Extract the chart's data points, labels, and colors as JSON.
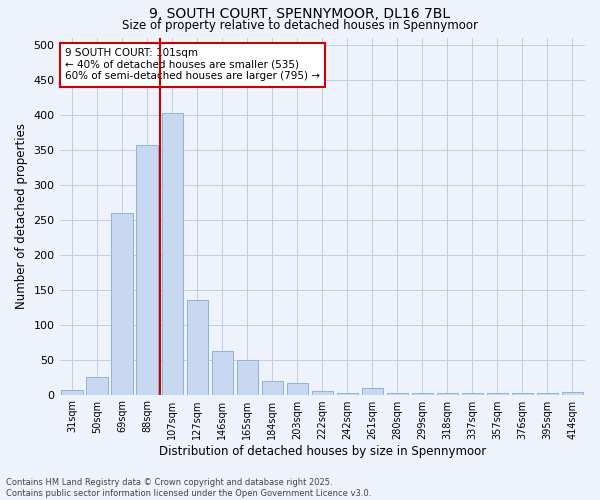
{
  "title_line1": "9, SOUTH COURT, SPENNYMOOR, DL16 7BL",
  "title_line2": "Size of property relative to detached houses in Spennymoor",
  "xlabel": "Distribution of detached houses by size in Spennymoor",
  "ylabel": "Number of detached properties",
  "categories": [
    "31sqm",
    "50sqm",
    "69sqm",
    "88sqm",
    "107sqm",
    "127sqm",
    "146sqm",
    "165sqm",
    "184sqm",
    "203sqm",
    "222sqm",
    "242sqm",
    "261sqm",
    "280sqm",
    "299sqm",
    "318sqm",
    "337sqm",
    "357sqm",
    "376sqm",
    "395sqm",
    "414sqm"
  ],
  "values": [
    7,
    25,
    260,
    357,
    402,
    135,
    62,
    49,
    19,
    16,
    5,
    2,
    9,
    2,
    2,
    2,
    2,
    2,
    2,
    2,
    3
  ],
  "bar_color": "#c8d8f0",
  "bar_edge_color": "#8ab4d8",
  "grid_color": "#c0cce0",
  "background_color": "#eef2fb",
  "vline_color": "#cc0000",
  "annotation_text": "9 SOUTH COURT: 101sqm\n← 40% of detached houses are smaller (535)\n60% of semi-detached houses are larger (795) →",
  "annotation_box_facecolor": "#ffffff",
  "annotation_box_edgecolor": "#cc0000",
  "ylim": [
    0,
    510
  ],
  "yticks": [
    0,
    50,
    100,
    150,
    200,
    250,
    300,
    350,
    400,
    450,
    500
  ],
  "footnote_line1": "Contains HM Land Registry data © Crown copyright and database right 2025.",
  "footnote_line2": "Contains public sector information licensed under the Open Government Licence v3.0."
}
